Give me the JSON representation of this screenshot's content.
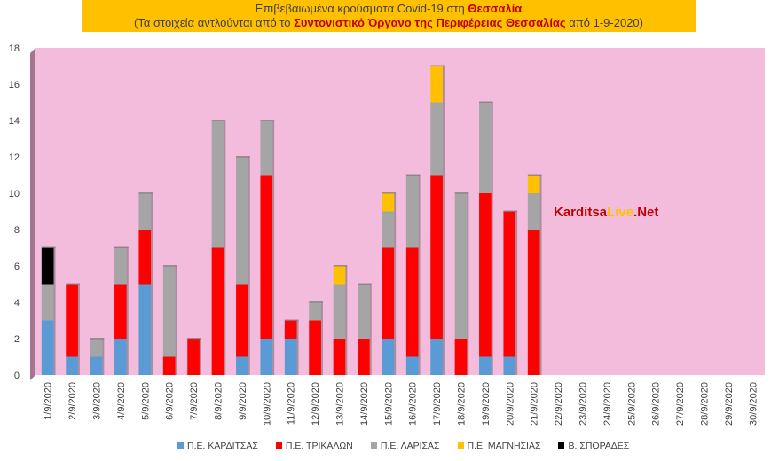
{
  "title": {
    "line1_prefix": "Επιβεβαιωμένα κρούσματα Covid-19 στη ",
    "line1_highlight": "Θεσσαλία",
    "line2_prefix": "(Τα στοιχεία αντλούνται από το ",
    "line2_highlight": "Συντονιστικό Όργανο της Περιφέρειας Θεσσαλίας",
    "line2_suffix": " από 1-9-2020)"
  },
  "watermark": {
    "part1": "Karditsa",
    "part2": "Live",
    "part3": ".Net"
  },
  "colors": {
    "plot_background": "#f4bcdc",
    "wall_side": "#a4758f",
    "karditsa": "#5b9bd5",
    "trikala": "#ff0000",
    "larisa": "#a5a5a5",
    "magnisia": "#ffc000",
    "sporades": "#000000"
  },
  "chart_data": {
    "type": "bar",
    "stacked": true,
    "title": "Επιβεβαιωμένα κρούσματα Covid-19 στη Θεσσαλία",
    "subtitle": "(Τα στοιχεία αντλούνται από το Συντονιστικό Όργανο της Περιφέρειας Θεσσαλίας από 1-9-2020)",
    "ylim": [
      0,
      18
    ],
    "yticks": [
      0,
      2,
      4,
      6,
      8,
      10,
      12,
      14,
      16,
      18
    ],
    "grid": false,
    "legend_position": "bottom",
    "categories": [
      "1/9/2020",
      "2/9/2020",
      "3/9/2020",
      "4/9/2020",
      "5/9/2020",
      "6/9/2020",
      "7/9/2020",
      "8/9/2020",
      "9/9/2020",
      "10/9/2020",
      "11/9/2020",
      "12/9/2020",
      "13/9/2020",
      "14/9/2020",
      "15/9/2020",
      "16/9/2020",
      "17/9/2020",
      "18/9/2020",
      "19/9/2020",
      "20/9/2020",
      "21/9/2020",
      "22/9/2020",
      "23/9/2020",
      "24/9/2020",
      "25/9/2020",
      "26/9/2020",
      "27/9/2020",
      "28/9/2020",
      "29/9/2020",
      "30/9/2020"
    ],
    "series": [
      {
        "name": "Π.Ε. ΚΑΡΔΙΤΣΑΣ",
        "color": "#5b9bd5",
        "values": [
          3,
          1,
          1,
          2,
          5,
          0,
          0,
          0,
          1,
          2,
          2,
          0,
          0,
          0,
          2,
          1,
          2,
          0,
          1,
          1,
          0,
          0,
          0,
          0,
          0,
          0,
          0,
          0,
          0,
          0
        ]
      },
      {
        "name": "Π.Ε. ΤΡΙΚΑΛΩΝ",
        "color": "#ff0000",
        "values": [
          0,
          4,
          0,
          3,
          3,
          1,
          2,
          7,
          4,
          9,
          1,
          3,
          2,
          2,
          5,
          6,
          9,
          2,
          9,
          8,
          8,
          0,
          0,
          0,
          0,
          0,
          0,
          0,
          0,
          0
        ]
      },
      {
        "name": "Π.Ε. ΛΑΡΙΣΑΣ",
        "color": "#a5a5a5",
        "values": [
          2,
          0,
          1,
          2,
          2,
          5,
          0,
          7,
          7,
          3,
          0,
          1,
          3,
          3,
          2,
          4,
          4,
          8,
          5,
          0,
          2,
          0,
          0,
          0,
          0,
          0,
          0,
          0,
          0,
          0
        ]
      },
      {
        "name": "Π.Ε. ΜΑΓΝΗΣΙΑΣ",
        "color": "#ffc000",
        "values": [
          0,
          0,
          0,
          0,
          0,
          0,
          0,
          0,
          0,
          0,
          0,
          0,
          1,
          0,
          1,
          0,
          2,
          0,
          0,
          0,
          1,
          0,
          0,
          0,
          0,
          0,
          0,
          0,
          0,
          0
        ]
      },
      {
        "name": "Β. ΣΠΟΡΑΔΕΣ",
        "color": "#000000",
        "values": [
          2,
          0,
          0,
          0,
          0,
          0,
          0,
          0,
          0,
          0,
          0,
          0,
          0,
          0,
          0,
          0,
          0,
          0,
          0,
          0,
          0,
          0,
          0,
          0,
          0,
          0,
          0,
          0,
          0,
          0
        ]
      }
    ]
  }
}
